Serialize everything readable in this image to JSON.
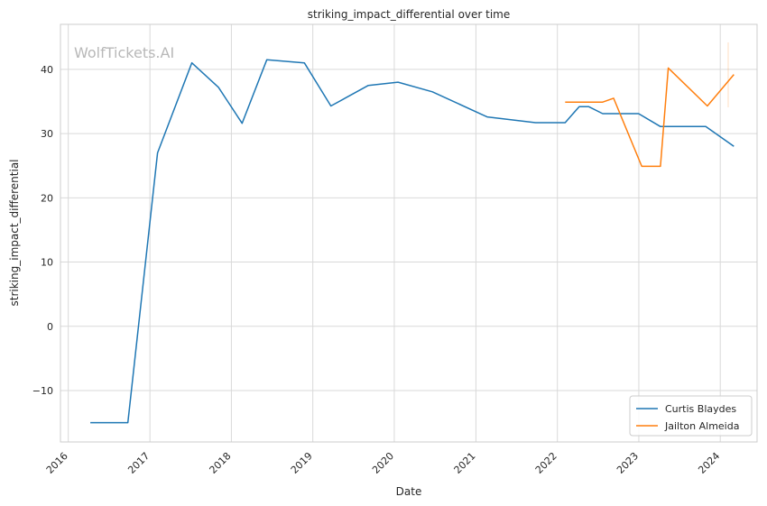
{
  "watermark": "WolfTickets.AI",
  "chart_data": {
    "type": "line",
    "title": "striking_impact_differential over time",
    "xlabel": "Date",
    "ylabel": "striking_impact_differential",
    "xlim": [
      "2015-11-27",
      "2024-06-14"
    ],
    "ylim": [
      -18,
      47
    ],
    "xticks": [
      "2016",
      "2017",
      "2018",
      "2019",
      "2020",
      "2021",
      "2022",
      "2023",
      "2024"
    ],
    "yticks": [
      -10,
      0,
      10,
      20,
      30,
      40
    ],
    "grid": true,
    "legend": "bottom-right",
    "series": [
      {
        "name": "Curtis Blaydes",
        "color": "#1f77b4",
        "x": [
          "2016-04-09",
          "2016-09-24",
          "2017-02-04",
          "2017-07-08",
          "2017-11-04",
          "2018-02-18",
          "2018-06-09",
          "2018-11-24",
          "2019-03-23",
          "2019-09-07",
          "2020-01-18",
          "2020-06-20",
          "2021-02-20",
          "2021-09-25",
          "2022-02-05",
          "2022-04-09",
          "2022-05-21",
          "2022-07-23",
          "2022-12-31",
          "2023-04-08",
          "2023-10-28",
          "2024-03-02"
        ],
        "y": [
          -15,
          -15,
          27,
          41,
          37.2,
          31.6,
          41.5,
          41.0,
          34.3,
          37.5,
          38.0,
          36.5,
          32.6,
          31.7,
          31.7,
          34.2,
          34.2,
          33.1,
          33.1,
          31.1,
          31.1,
          28.0
        ]
      },
      {
        "name": "Jailton Almeida",
        "color": "#ff7f0e",
        "x": [
          "2022-02-05",
          "2022-07-23",
          "2022-09-10",
          "2023-01-14",
          "2023-04-08",
          "2023-05-13",
          "2023-11-04",
          "2024-03-02"
        ],
        "y": [
          34.9,
          34.9,
          35.5,
          24.9,
          24.9,
          40.2,
          34.3,
          39.2
        ]
      }
    ]
  }
}
